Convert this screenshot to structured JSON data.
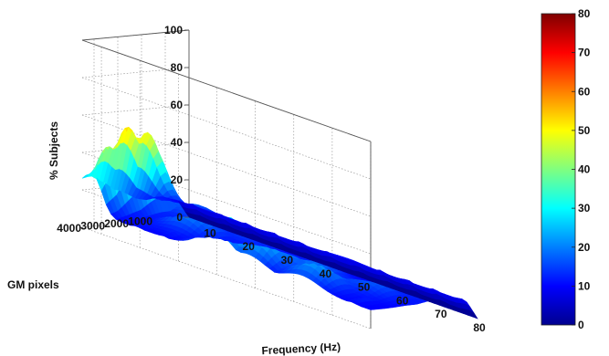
{
  "chart_data": {
    "type": "surface3d",
    "title": "",
    "xlabel": "Frequency (Hz)",
    "ylabel": "GM pixels",
    "zlabel": "% Subjects",
    "x_range": [
      5,
      80
    ],
    "y_range": [
      0,
      4500
    ],
    "z_range": [
      0,
      100
    ],
    "x_ticks": [
      "10",
      "20",
      "30",
      "40",
      "50",
      "60",
      "70",
      "80"
    ],
    "y_ticks": [
      "1000",
      "2000",
      "3000",
      "4000"
    ],
    "z_ticks": [
      "0",
      "20",
      "40",
      "60",
      "80",
      "100"
    ],
    "colorbar": {
      "range": [
        0,
        80
      ],
      "ticks": [
        "0",
        "10",
        "20",
        "30",
        "40",
        "50",
        "60",
        "70",
        "80"
      ],
      "colormap": "jet"
    },
    "grid": true,
    "surface_peaks": [
      {
        "frequency": 8,
        "gm_pixels": 3800,
        "percent": 45
      },
      {
        "frequency": 9,
        "gm_pixels": 3200,
        "percent": 55
      },
      {
        "frequency": 10,
        "gm_pixels": 2600,
        "percent": 52
      },
      {
        "frequency": 6,
        "gm_pixels": 4200,
        "percent": 30
      },
      {
        "frequency": 40,
        "gm_pixels": 4000,
        "percent": 30
      },
      {
        "frequency": 45,
        "gm_pixels": 3300,
        "percent": 25
      },
      {
        "frequency": 48,
        "gm_pixels": 3800,
        "percent": 27
      },
      {
        "frequency": 25,
        "gm_pixels": 3000,
        "percent": 22
      },
      {
        "frequency": 55,
        "gm_pixels": 3000,
        "percent": 22
      },
      {
        "frequency": 62,
        "gm_pixels": 3800,
        "percent": 24
      },
      {
        "frequency": 70,
        "gm_pixels": 2800,
        "percent": 18
      },
      {
        "frequency": 18,
        "gm_pixels": 1800,
        "percent": 18
      },
      {
        "frequency": 35,
        "gm_pixels": 2000,
        "percent": 16
      },
      {
        "frequency": 50,
        "gm_pixels": 1500,
        "percent": 15
      },
      {
        "frequency": 75,
        "gm_pixels": 1800,
        "percent": 14
      }
    ],
    "surface_base_percent": 10
  }
}
